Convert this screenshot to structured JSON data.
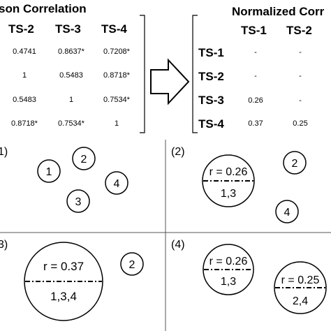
{
  "left_matrix": {
    "title": "son Correlation",
    "columns": [
      "TS-2",
      "TS-3",
      "TS-4"
    ],
    "rows": [
      [
        "0.4741",
        "0.8637*",
        "0.7208*"
      ],
      [
        "1",
        "0.5483",
        "0.8718*"
      ],
      [
        "0.5483",
        "1",
        "0.7534*"
      ],
      [
        "0.8718*",
        "0.7534*",
        "1"
      ]
    ]
  },
  "right_matrix": {
    "title": "Normalized Corr",
    "columns": [
      "TS-1",
      "TS-2"
    ],
    "row_labels": [
      "TS-1",
      "TS-2",
      "TS-3",
      "TS-4"
    ],
    "rows": [
      [
        "-",
        "-"
      ],
      [
        "-",
        "-"
      ],
      [
        "0.26",
        "-"
      ],
      [
        "0.37",
        "0.25"
      ]
    ]
  },
  "panels": {
    "p1": {
      "label": "1)",
      "nodes": [
        "1",
        "2",
        "3",
        "4"
      ]
    },
    "p2": {
      "label": "(2)",
      "cluster_r": "r = 0.26",
      "cluster_members": "1,3",
      "nodes": [
        "2",
        "4"
      ]
    },
    "p3": {
      "label": "3)",
      "cluster_r": "r = 0.37",
      "cluster_members": "1,3,4",
      "nodes": [
        "2"
      ]
    },
    "p4": {
      "label": "(4)",
      "cluster_a_r": "r = 0.26",
      "cluster_a_members": "1,3",
      "cluster_b_r": "r = 0.25",
      "cluster_b_members": "2,4"
    }
  }
}
